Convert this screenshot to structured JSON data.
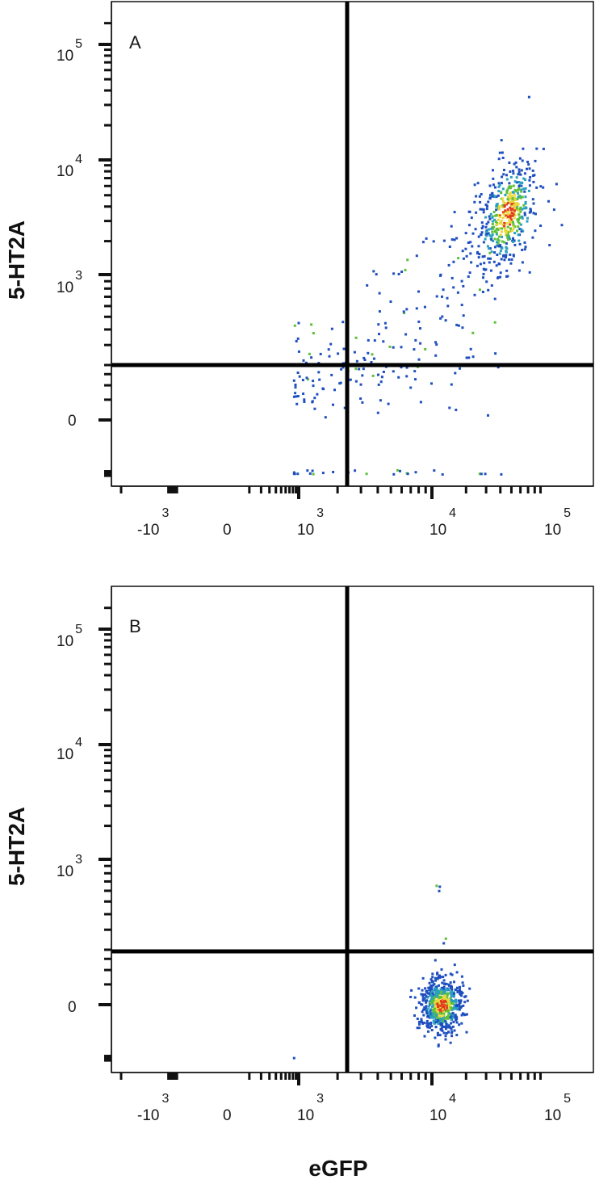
{
  "chart_data": [
    {
      "type": "scatter",
      "panel_label": "A",
      "xlabel": "eGFP",
      "ylabel": "5-HT2A",
      "x_scale": "biexponential",
      "y_scale": "biexponential",
      "xlim": [
        -2000,
        200000
      ],
      "ylim": [
        -300,
        200000
      ],
      "x_ticks": [
        {
          "base": "-10",
          "exp": "3",
          "value": -1000
        },
        {
          "base": "0",
          "exp": "",
          "value": 0
        },
        {
          "base": "10",
          "exp": "3",
          "value": 1000
        },
        {
          "base": "10",
          "exp": "4",
          "value": 10000
        },
        {
          "base": "10",
          "exp": "5",
          "value": 100000
        }
      ],
      "y_ticks": [
        {
          "base": "0",
          "exp": "",
          "value": 0
        },
        {
          "base": "10",
          "exp": "3",
          "value": 1000
        },
        {
          "base": "10",
          "exp": "4",
          "value": 10000
        },
        {
          "base": "10",
          "exp": "5",
          "value": 100000
        }
      ],
      "quadrant_gate": {
        "x": 2000,
        "y": 200
      },
      "populations": [
        {
          "desc": "main cluster",
          "x_center": 45000,
          "y_center": 3500,
          "count": 480,
          "density": "high"
        },
        {
          "desc": "diagonal tail",
          "x_range": [
            800,
            40000
          ],
          "y_range": [
            100,
            1500
          ],
          "count": 230,
          "density": "low"
        }
      ]
    },
    {
      "type": "scatter",
      "panel_label": "B",
      "xlabel": "eGFP",
      "ylabel": "5-HT2A",
      "x_scale": "biexponential",
      "y_scale": "biexponential",
      "xlim": [
        -2000,
        200000
      ],
      "ylim": [
        -300,
        200000
      ],
      "x_ticks": [
        {
          "base": "-10",
          "exp": "3",
          "value": -1000
        },
        {
          "base": "0",
          "exp": "",
          "value": 0
        },
        {
          "base": "10",
          "exp": "3",
          "value": 1000
        },
        {
          "base": "10",
          "exp": "4",
          "value": 10000
        },
        {
          "base": "10",
          "exp": "5",
          "value": 100000
        }
      ],
      "y_ticks": [
        {
          "base": "0",
          "exp": "",
          "value": 0
        },
        {
          "base": "10",
          "exp": "3",
          "value": 1000
        },
        {
          "base": "10",
          "exp": "4",
          "value": 10000
        },
        {
          "base": "10",
          "exp": "5",
          "value": 100000
        }
      ],
      "quadrant_gate": {
        "x": 2000,
        "y": 200
      },
      "populations": [
        {
          "desc": "main cluster",
          "x_center": 12000,
          "y_center": 0,
          "count": 620,
          "density": "high"
        },
        {
          "desc": "outliers",
          "x_range": [
            5000,
            20000
          ],
          "y_range": [
            100,
            1500
          ],
          "count": 6,
          "density": "low"
        }
      ]
    }
  ],
  "colors": {
    "density_low": "#1f4fbf",
    "density_mid_low": "#2a9fbf",
    "density_mid": "#5cc03a",
    "density_high": "#e8d83a",
    "density_max": "#e23a1e",
    "axis": "#111111",
    "gate": "#000000"
  }
}
